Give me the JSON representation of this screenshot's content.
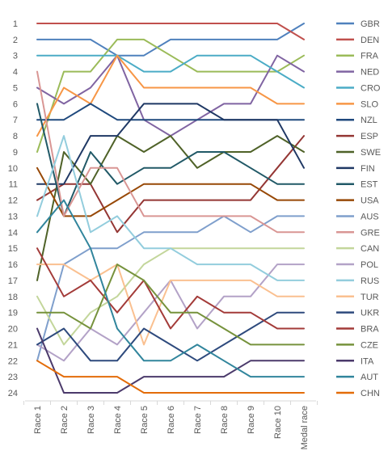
{
  "chart_data": {
    "type": "line",
    "title": "",
    "xlabel": "",
    "ylabel": "",
    "y_inverted": true,
    "ylim": [
      1,
      24
    ],
    "categories": [
      "Race 1",
      "Race 2",
      "Race 3",
      "Race 4",
      "Race 5",
      "Race 6",
      "Race 7",
      "Race 8",
      "Race 9",
      "Race 10",
      "Medal race"
    ],
    "y_ticks": [
      1,
      2,
      3,
      4,
      5,
      6,
      7,
      8,
      9,
      10,
      11,
      12,
      13,
      14,
      15,
      16,
      17,
      18,
      19,
      20,
      21,
      22,
      23,
      24
    ],
    "grid": false,
    "legend_position": "right",
    "series": [
      {
        "name": "GBR",
        "color": "#4f81bd",
        "values": [
          2,
          2,
          2,
          3,
          3,
          2,
          2,
          2,
          2,
          2,
          1
        ]
      },
      {
        "name": "DEN",
        "color": "#c0504d",
        "values": [
          1,
          1,
          1,
          1,
          1,
          1,
          1,
          1,
          1,
          1,
          2
        ]
      },
      {
        "name": "FRA",
        "color": "#9bbb59",
        "values": [
          9,
          4,
          4,
          2,
          2,
          3,
          4,
          4,
          4,
          4,
          3
        ]
      },
      {
        "name": "NED",
        "color": "#8064a2",
        "values": [
          5,
          6,
          5,
          3,
          7,
          8,
          7,
          6,
          6,
          3,
          4
        ]
      },
      {
        "name": "CRO",
        "color": "#4bacc6",
        "values": [
          3,
          3,
          3,
          3,
          4,
          4,
          3,
          3,
          3,
          4,
          5
        ]
      },
      {
        "name": "SLO",
        "color": "#f79646",
        "values": [
          8,
          5,
          6,
          3,
          5,
          5,
          5,
          5,
          5,
          6,
          6
        ]
      },
      {
        "name": "NZL",
        "color": "#1f497d",
        "values": [
          7,
          7,
          6,
          7,
          7,
          7,
          7,
          7,
          7,
          7,
          7
        ]
      },
      {
        "name": "ESP",
        "color": "#943634",
        "values": [
          12,
          11,
          11,
          14,
          12,
          12,
          12,
          12,
          12,
          10,
          8
        ]
      },
      {
        "name": "SWE",
        "color": "#4f6228",
        "values": [
          17,
          9,
          11,
          8,
          9,
          8,
          10,
          9,
          9,
          8,
          9
        ]
      },
      {
        "name": "FIN",
        "color": "#1f3864",
        "values": [
          11,
          11,
          8,
          8,
          6,
          6,
          6,
          7,
          7,
          7,
          10
        ]
      },
      {
        "name": "EST",
        "color": "#215967",
        "values": [
          6,
          13,
          9,
          11,
          10,
          10,
          9,
          9,
          10,
          11,
          11
        ]
      },
      {
        "name": "USA",
        "color": "#974806",
        "values": [
          10,
          13,
          13,
          12,
          11,
          11,
          11,
          11,
          11,
          12,
          12
        ]
      },
      {
        "name": "AUS",
        "color": "#7f9fcc",
        "values": [
          22,
          16,
          15,
          15,
          14,
          14,
          14,
          13,
          14,
          13,
          13
        ]
      },
      {
        "name": "GRE",
        "color": "#d99694",
        "values": [
          4,
          13,
          10,
          10,
          13,
          13,
          13,
          13,
          13,
          14,
          14
        ]
      },
      {
        "name": "CAN",
        "color": "#c3d69b",
        "values": [
          18,
          21,
          19,
          18,
          16,
          15,
          15,
          15,
          15,
          15,
          15
        ]
      },
      {
        "name": "POL",
        "color": "#b3a2c7",
        "values": [
          21,
          22,
          20,
          21,
          19,
          17,
          20,
          18,
          18,
          16,
          16
        ]
      },
      {
        "name": "RUS",
        "color": "#93cddd",
        "values": [
          13,
          8,
          14,
          13,
          15,
          15,
          16,
          16,
          16,
          17,
          17
        ]
      },
      {
        "name": "TUR",
        "color": "#fac090",
        "values": [
          16,
          16,
          17,
          16,
          21,
          17,
          17,
          17,
          17,
          18,
          18
        ]
      },
      {
        "name": "UKR",
        "color": "#2e4a7d",
        "values": [
          21,
          20,
          22,
          22,
          20,
          21,
          22,
          21,
          20,
          19,
          19
        ]
      },
      {
        "name": "BRA",
        "color": "#a33b39",
        "values": [
          15,
          18,
          17,
          19,
          17,
          20,
          18,
          19,
          19,
          20,
          20
        ]
      },
      {
        "name": "CZE",
        "color": "#76923c",
        "values": [
          19,
          19,
          20,
          16,
          17,
          19,
          19,
          20,
          21,
          21,
          21
        ]
      },
      {
        "name": "ITA",
        "color": "#4b3a6b",
        "values": [
          20,
          24,
          24,
          24,
          23,
          23,
          23,
          23,
          22,
          22,
          22
        ]
      },
      {
        "name": "AUT",
        "color": "#31859c",
        "values": [
          14,
          12,
          15,
          20,
          22,
          22,
          21,
          22,
          23,
          23,
          23
        ]
      },
      {
        "name": "CHN",
        "color": "#e36c09",
        "values": [
          22,
          23,
          23,
          23,
          24,
          24,
          24,
          24,
          24,
          24,
          24
        ]
      }
    ]
  }
}
